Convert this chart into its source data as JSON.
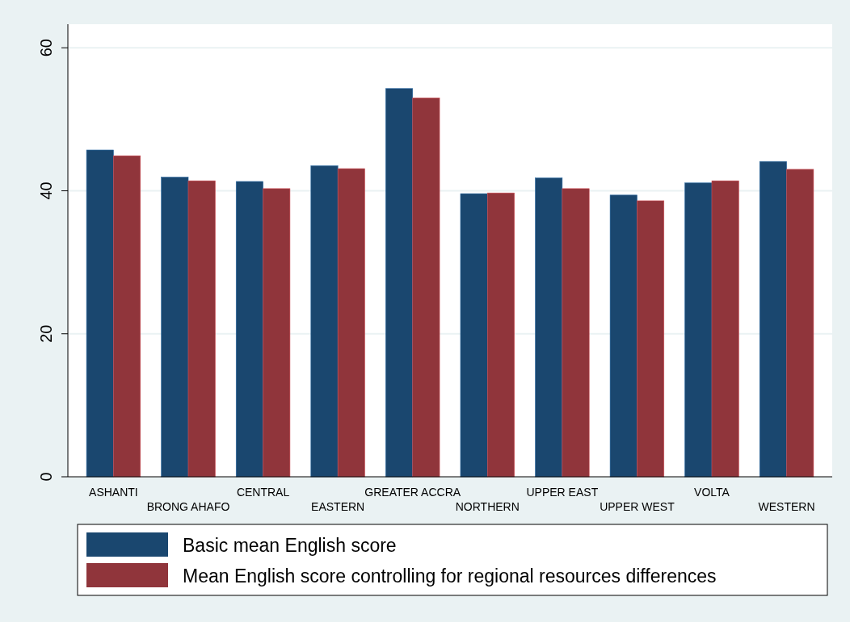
{
  "chart_data": {
    "type": "bar",
    "categories": [
      "ASHANTI",
      "BRONG AHAFO",
      "CENTRAL",
      "EASTERN",
      "GREATER ACCRA",
      "NORTHERN",
      "UPPER EAST",
      "UPPER WEST",
      "VOLTA",
      "WESTERN"
    ],
    "series": [
      {
        "name": "Basic mean English score",
        "color": "#1a476f",
        "values": [
          45.7,
          41.9,
          41.3,
          43.5,
          54.3,
          39.6,
          41.8,
          39.4,
          41.1,
          44.1
        ]
      },
      {
        "name": "Mean English score controlling for regional resources differences",
        "color": "#90353b",
        "values": [
          44.9,
          41.4,
          40.3,
          43.1,
          53.0,
          39.7,
          40.3,
          38.6,
          41.4,
          43.0
        ]
      }
    ],
    "ylim": [
      0,
      63.3
    ],
    "yticks": [
      0,
      20,
      40,
      60
    ],
    "grid": "y",
    "legend": "bottom"
  }
}
